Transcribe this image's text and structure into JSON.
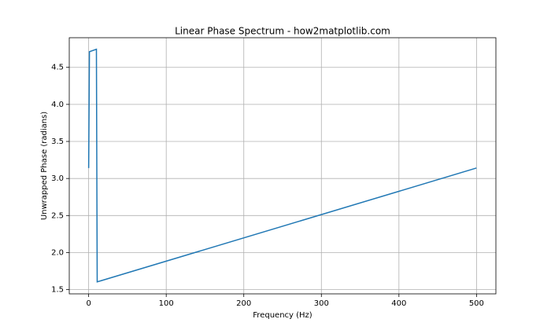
{
  "chart_data": {
    "type": "line",
    "title": "Linear Phase Spectrum - how2matplotlib.com",
    "x_label": "Frequency (Hz)",
    "y_label": "Unwrapped Phase (radians)",
    "x": [
      0,
      1,
      10,
      11,
      500
    ],
    "series": [
      {
        "color": "#1f77b4",
        "values": [
          3.1416,
          4.712,
          4.744,
          1.605,
          3.1416
        ]
      }
    ],
    "xlim": [
      -25,
      525
    ],
    "xticks": [
      0,
      100,
      200,
      300,
      400,
      500
    ],
    "ylim": [
      1.443,
      4.9
    ],
    "yticks": [
      1.5,
      {
        "value": 2,
        "label": "2.0"
      },
      2.5,
      {
        "value": 3,
        "label": "3.0"
      },
      3.5,
      {
        "value": 4,
        "label": "4.0"
      },
      4.5
    ],
    "grid": true
  }
}
